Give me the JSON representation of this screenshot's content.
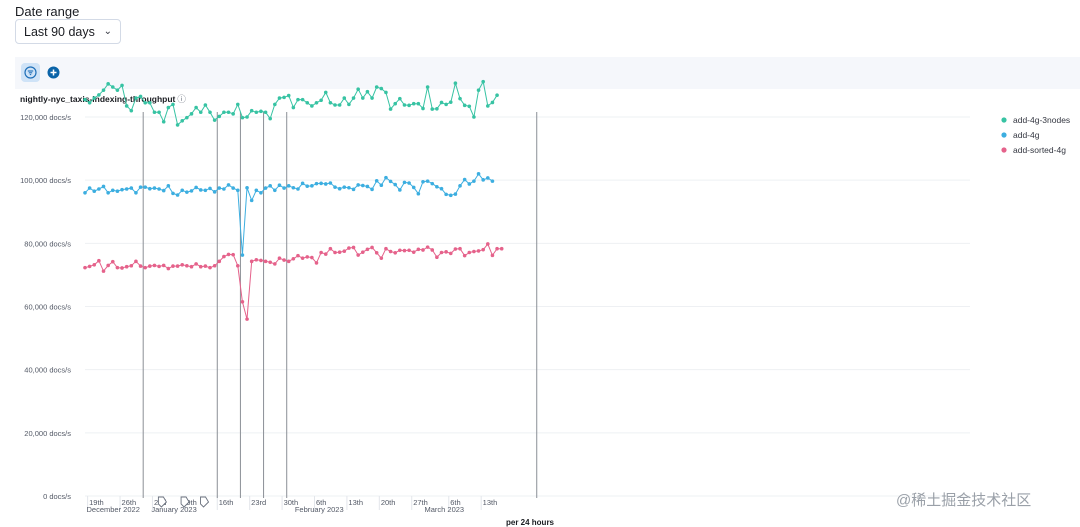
{
  "date_range": {
    "label": "Date range",
    "value": "Last 90 days"
  },
  "toolbar": {
    "filter_icon": "filter-icon",
    "add_icon": "plus-circle-icon"
  },
  "chart_title": "nightly-nyc_taxis-indexing-throughput",
  "watermark": "@稀土掘金技术社区",
  "colors": {
    "add-4g-3nodes": "#37c3a3",
    "add-4g": "#3caee0",
    "add-sorted-4g": "#e5628b",
    "annotation": "#8b8f96"
  },
  "chart_data": {
    "type": "line",
    "x_start": "2022-12-18",
    "x_tick_labels": [
      "19th",
      "26th",
      "2nd",
      "9th",
      "16th",
      "23rd",
      "30th",
      "6th",
      "13th",
      "20th",
      "27th",
      "6th",
      "13th"
    ],
    "x_group_labels": [
      "December 2022",
      "January 2023",
      "February 2023",
      "March 2023"
    ],
    "xlabel": "per 24 hours",
    "y_ticks": [
      "0 docs/s",
      "20,000 docs/s",
      "40,000 docs/s",
      "60,000 docs/s",
      "80,000 docs/s",
      "100,000 docs/s",
      "120,000 docs/s"
    ],
    "ylim": [
      0,
      130000
    ],
    "legend_position": "right",
    "annotation_lines": [
      "2022-12-31",
      "2023-01-16",
      "2023-01-21",
      "2023-01-26",
      "2023-01-31",
      "2023-03-26"
    ],
    "series": [
      {
        "name": "add-4g-3nodes",
        "values": [
          125500,
          124500,
          126000,
          127000,
          128500,
          130500,
          129500,
          128500,
          130000,
          123500,
          122000,
          126000,
          126500,
          124500,
          124500,
          121500,
          121500,
          118500,
          123000,
          124000,
          117500,
          118800,
          119800,
          121000,
          123000,
          121500,
          123800,
          121500,
          119000,
          120200,
          121500,
          121500,
          121000,
          124000,
          119800,
          120000,
          122000,
          121500,
          121800,
          121500,
          119500,
          124000,
          126000,
          126200,
          126800,
          123000,
          125500,
          125500,
          124500,
          123500,
          124500,
          125300,
          127800,
          124500,
          123800,
          123800,
          126000,
          124000,
          126000,
          128800,
          126000,
          128000,
          126000,
          129500,
          129000,
          127800,
          122500,
          124200,
          125800,
          123800,
          123700,
          124200,
          124200,
          122700,
          129500,
          122500,
          122600,
          124600,
          124000,
          124700,
          130700,
          125800,
          123700,
          123400,
          120000,
          128500,
          131200,
          123500,
          124600,
          126900
        ]
      },
      {
        "name": "add-4g",
        "values": [
          96000,
          97500,
          96500,
          97200,
          98000,
          96000,
          96800,
          96500,
          97000,
          97200,
          97500,
          96000,
          97800,
          97800,
          97300,
          97500,
          97200,
          96700,
          98200,
          95800,
          95300,
          96800,
          96200,
          96600,
          97700,
          96900,
          96800,
          97400,
          96300,
          97500,
          97200,
          98500,
          97500,
          96800,
          76300,
          97600,
          93600,
          96800,
          96000,
          97500,
          98200,
          96800,
          98400,
          97500,
          98200,
          97600,
          97200,
          99000,
          98100,
          98200,
          98900,
          99000,
          98800,
          99100,
          97800,
          97300,
          97800,
          97600,
          97100,
          98500,
          98300,
          98000,
          97100,
          99800,
          98400,
          100800,
          99600,
          98600,
          96900,
          99300,
          99100,
          97700,
          95700,
          99500,
          99700,
          98900,
          97900,
          97300,
          95500,
          95200,
          95600,
          98200,
          100200,
          98800,
          99700,
          102000,
          100100,
          100700,
          99700
        ]
      },
      {
        "name": "add-sorted-4g",
        "values": [
          72300,
          72700,
          73200,
          74500,
          71200,
          73000,
          74200,
          72300,
          72200,
          72600,
          72900,
          74300,
          72800,
          72300,
          72800,
          73000,
          72700,
          73000,
          72000,
          72800,
          72800,
          73200,
          72900,
          72600,
          73500,
          72600,
          72800,
          72300,
          72900,
          74300,
          75800,
          76500,
          76400,
          72900,
          61500,
          56000,
          74300,
          74800,
          74600,
          74300,
          74000,
          73500,
          75300,
          74700,
          74300,
          75100,
          76100,
          75300,
          75700,
          75500,
          73800,
          77100,
          76600,
          78300,
          77100,
          77200,
          77500,
          78500,
          78700,
          76300,
          77200,
          78100,
          78700,
          77000,
          75300,
          78300,
          77400,
          77000,
          77800,
          77700,
          77800,
          77200,
          78100,
          77900,
          78800,
          77900,
          75600,
          77100,
          77300,
          76800,
          78200,
          78300,
          76100,
          77100,
          77400,
          77600,
          78000,
          79800,
          76200,
          78300,
          78300
        ]
      }
    ]
  }
}
